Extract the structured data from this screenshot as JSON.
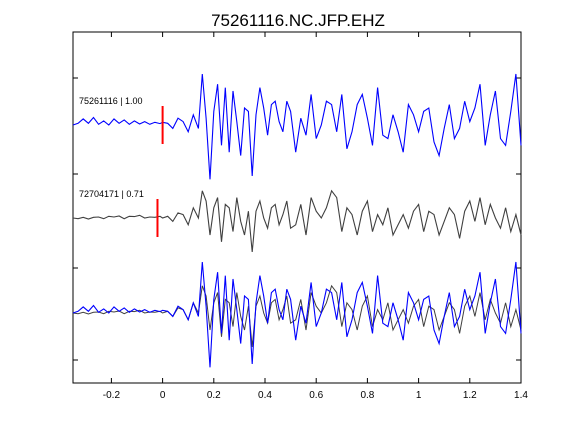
{
  "chart_data": {
    "type": "line",
    "title": "75261116.NC.JFP.EHZ",
    "xlabel": "",
    "ylabel": "",
    "xlim": [
      -0.35,
      1.4
    ],
    "x_ticks": [
      -0.2,
      0,
      0.2,
      0.4,
      0.6,
      0.8,
      1,
      1.2,
      1.4
    ],
    "x_tick_labels": [
      "-0.2",
      "0",
      "0.2",
      "0.4",
      "0.6",
      "0.8",
      "1",
      "1.2",
      "1.4"
    ],
    "grid": false,
    "pick_time": 0,
    "colors": {
      "event": "#0000ff",
      "neighbor": "#404040",
      "pick": "#ff0000"
    },
    "traces": [
      {
        "label": "75261116 | 1.00",
        "pick_x": 0,
        "x": [
          -0.35,
          -0.33,
          -0.31,
          -0.29,
          -0.27,
          -0.25,
          -0.23,
          -0.21,
          -0.19,
          -0.17,
          -0.15,
          -0.13,
          -0.11,
          -0.09,
          -0.07,
          -0.05,
          -0.03,
          -0.01,
          0.0,
          0.02,
          0.04,
          0.06,
          0.08,
          0.1,
          0.12,
          0.14,
          0.155,
          0.17,
          0.185,
          0.2,
          0.215,
          0.23,
          0.245,
          0.26,
          0.275,
          0.29,
          0.305,
          0.32,
          0.335,
          0.35,
          0.365,
          0.38,
          0.395,
          0.41,
          0.425,
          0.44,
          0.455,
          0.47,
          0.485,
          0.5,
          0.52,
          0.54,
          0.56,
          0.58,
          0.6,
          0.62,
          0.64,
          0.66,
          0.68,
          0.7,
          0.72,
          0.74,
          0.76,
          0.78,
          0.8,
          0.82,
          0.84,
          0.86,
          0.88,
          0.9,
          0.92,
          0.94,
          0.96,
          0.98,
          1.0,
          1.02,
          1.04,
          1.06,
          1.08,
          1.1,
          1.12,
          1.14,
          1.16,
          1.18,
          1.2,
          1.22,
          1.24,
          1.26,
          1.28,
          1.3,
          1.32,
          1.34,
          1.36,
          1.38,
          1.4
        ],
        "y": [
          0.0,
          0.05,
          0.18,
          0.05,
          0.22,
          0.02,
          0.12,
          0.0,
          0.18,
          0.05,
          0.15,
          0.02,
          0.12,
          0.03,
          0.1,
          0.02,
          0.08,
          0.04,
          0.08,
          0.05,
          -0.1,
          0.2,
          0.1,
          -0.2,
          0.3,
          -0.1,
          1.5,
          0.2,
          -1.6,
          0.4,
          1.2,
          -0.6,
          1.1,
          -0.8,
          1.0,
          0.1,
          -0.9,
          0.5,
          0.4,
          -1.5,
          0.3,
          1.1,
          0.5,
          -0.3,
          0.6,
          0.7,
          0.1,
          -0.2,
          0.7,
          0.4,
          -0.8,
          0.2,
          -0.3,
          0.9,
          -0.4,
          0.0,
          0.7,
          0.6,
          -0.2,
          0.9,
          -0.7,
          -0.2,
          0.6,
          0.9,
          0.2,
          -0.6,
          1.1,
          -0.3,
          -0.4,
          0.3,
          -0.2,
          -0.8,
          0.6,
          0.3,
          -0.2,
          0.4,
          0.5,
          -0.5,
          -0.9,
          -0.1,
          0.6,
          -0.4,
          -0.1,
          0.7,
          0.1,
          0.5,
          1.2,
          -0.6,
          0.3,
          1.0,
          -0.4,
          -0.6,
          0.4,
          1.5,
          -0.6
        ]
      },
      {
        "label": "72704171 | 0.71",
        "pick_x": -0.02,
        "x": [
          -0.35,
          -0.33,
          -0.31,
          -0.29,
          -0.27,
          -0.25,
          -0.23,
          -0.21,
          -0.19,
          -0.17,
          -0.15,
          -0.13,
          -0.11,
          -0.09,
          -0.07,
          -0.05,
          -0.03,
          -0.01,
          0.0,
          0.02,
          0.04,
          0.06,
          0.08,
          0.1,
          0.12,
          0.14,
          0.155,
          0.17,
          0.185,
          0.2,
          0.215,
          0.23,
          0.245,
          0.26,
          0.275,
          0.29,
          0.305,
          0.32,
          0.335,
          0.35,
          0.365,
          0.38,
          0.395,
          0.41,
          0.425,
          0.44,
          0.455,
          0.47,
          0.485,
          0.5,
          0.52,
          0.54,
          0.56,
          0.58,
          0.6,
          0.62,
          0.64,
          0.66,
          0.68,
          0.7,
          0.72,
          0.74,
          0.76,
          0.78,
          0.8,
          0.82,
          0.84,
          0.86,
          0.88,
          0.9,
          0.92,
          0.94,
          0.96,
          0.98,
          1.0,
          1.02,
          1.04,
          1.06,
          1.08,
          1.1,
          1.12,
          1.14,
          1.16,
          1.18,
          1.2,
          1.22,
          1.24,
          1.26,
          1.28,
          1.3,
          1.32,
          1.34,
          1.36,
          1.38,
          1.4
        ],
        "y": [
          0.0,
          -0.02,
          0.02,
          -0.03,
          0.02,
          0.03,
          -0.02,
          0.05,
          0.03,
          0.06,
          -0.02,
          0.05,
          0.04,
          0.08,
          0.0,
          0.03,
          0.02,
          0.05,
          0.0,
          0.05,
          -0.1,
          0.15,
          0.1,
          -0.2,
          0.3,
          0.0,
          0.8,
          0.5,
          -0.5,
          0.3,
          0.6,
          -0.7,
          0.4,
          0.3,
          -0.4,
          0.6,
          -0.1,
          -0.5,
          0.2,
          -1.0,
          0.2,
          0.5,
          0.0,
          -0.3,
          0.3,
          0.4,
          -0.2,
          0.1,
          0.5,
          -0.3,
          -0.2,
          0.4,
          -0.5,
          0.6,
          0.2,
          0.0,
          0.3,
          0.8,
          0.6,
          -0.4,
          0.3,
          0.1,
          -0.5,
          0.2,
          0.5,
          -0.4,
          0.1,
          -0.2,
          0.3,
          -0.5,
          -0.2,
          0.1,
          -0.3,
          0.2,
          0.4,
          -0.4,
          0.2,
          0.1,
          -0.5,
          -0.1,
          0.3,
          0.1,
          -0.6,
          0.2,
          0.5,
          -0.1,
          0.6,
          -0.2,
          0.4,
          0.0,
          -0.3,
          0.3,
          -0.4,
          0.1,
          -0.5
        ]
      }
    ]
  }
}
